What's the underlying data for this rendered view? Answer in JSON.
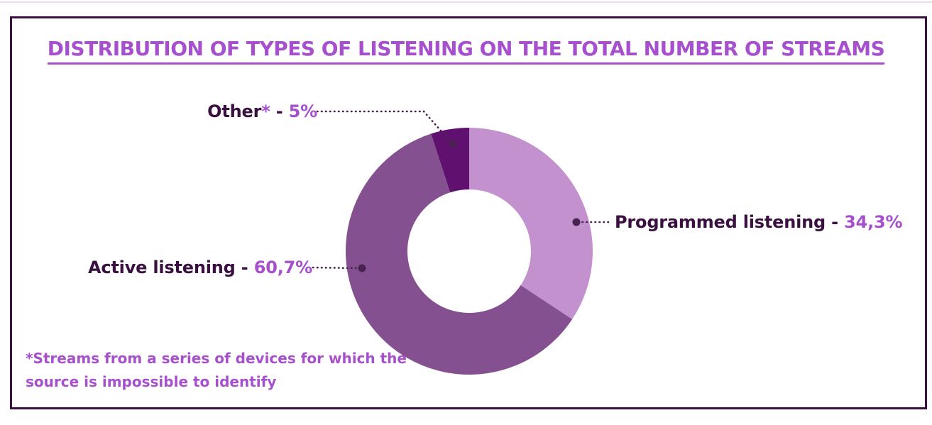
{
  "title": "DISTRIBUTION OF TYPES OF LISTENING ON THE TOTAL NUMBER OF STREAMS",
  "callouts": {
    "other": {
      "name": "Other",
      "asterisk": "*",
      "separator": " - ",
      "value": "5%"
    },
    "programmed": {
      "name": "Programmed listening",
      "separator": " - ",
      "value": "34,3%"
    },
    "active": {
      "name": "Active listening",
      "separator": " - ",
      "value": "60,7%"
    }
  },
  "footnote": {
    "line1": "*Streams from a series of devices for which the",
    "line2": "source is impossible to identify"
  },
  "colors": {
    "accent_text": "#a750ce",
    "dark_text": "#3a1040",
    "leader": "#4a2251",
    "frame_border": "#3c0e42",
    "top_line": "#eedcf0"
  },
  "chart_data": {
    "type": "pie",
    "variant": "donut",
    "title": "DISTRIBUTION OF TYPES OF LISTENING ON THE TOTAL NUMBER OF STREAMS",
    "unit": "%",
    "start_angle_deg_from_top_clockwise": 0,
    "direction": "clockwise",
    "segments": [
      {
        "label": "Programmed listening",
        "value": 34.3,
        "display": "34,3%",
        "color": "#c291ce"
      },
      {
        "label": "Active listening",
        "value": 60.7,
        "display": "60,7%",
        "color": "#85508f"
      },
      {
        "label": "Other",
        "value": 5.0,
        "display": "5%",
        "color": "#601170"
      }
    ],
    "footnote": "*Streams from a series of devices for which the source is impossible to identify"
  }
}
